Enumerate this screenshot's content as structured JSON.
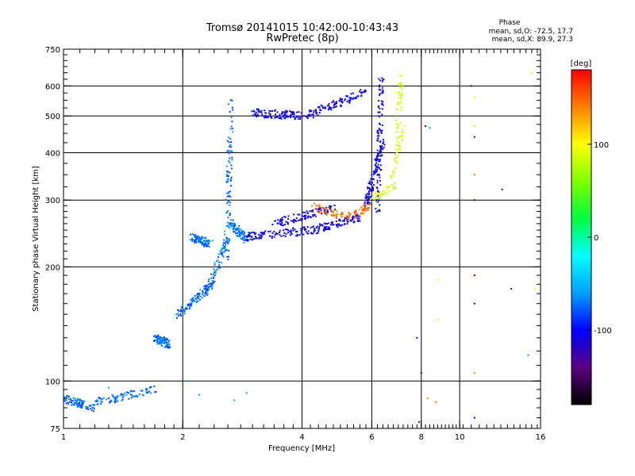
{
  "chart_data": {
    "type": "scatter",
    "title": "Tromsø 20141015 10:42:00-10:43:43",
    "subtitle": "RwPretec (8p)",
    "xlabel": "Frequency [MHz]",
    "ylabel": "Stationary phase Virtual Height [km]",
    "x_scale": "log",
    "y_scale": "log",
    "xlim": [
      1,
      16
    ],
    "ylim": [
      75,
      750
    ],
    "x_ticks": [
      1,
      2,
      4,
      6,
      8,
      10,
      16
    ],
    "x_tick_labels": [
      "1",
      "2",
      "4",
      "6",
      "8",
      "10",
      "16"
    ],
    "y_ticks": [
      75,
      100,
      200,
      300,
      400,
      500,
      600,
      750
    ],
    "y_tick_labels": [
      "75",
      "100",
      "200",
      "300",
      "400",
      "500",
      "600",
      "750"
    ],
    "grid": true,
    "stats": {
      "title": "Phase",
      "line_o": "mean, sd,O: -72.5, 17.7",
      "line_x": "mean, sd,X:  89.9, 27.3"
    },
    "colorbar": {
      "label": "[deg]",
      "min": -180,
      "max": 180,
      "ticks": [
        100,
        0,
        -100
      ],
      "tick_labels": [
        "100",
        "0",
        "-100"
      ],
      "colors": [
        "#000000",
        "#5a0080",
        "#0000ff",
        "#00a0ff",
        "#00ffff",
        "#00ff40",
        "#80ff00",
        "#ffff00",
        "#ff8000",
        "#ff0000"
      ]
    },
    "series": [
      {
        "segments": [
          [
            1.0,
            90,
            1.2,
            85
          ],
          [
            1.2,
            88,
            1.7,
            95
          ],
          [
            1.7,
            130,
            1.85,
            125
          ],
          [
            1.95,
            150,
            2.3,
            175
          ],
          [
            2.3,
            170,
            2.6,
            240
          ],
          [
            2.58,
            210,
            2.65,
            550
          ],
          [
            2.65,
            260,
            2.9,
            235
          ],
          [
            2.1,
            240,
            2.35,
            230
          ]
        ],
        "phase": -72,
        "count": 700
      },
      {
        "segments": [
          [
            2.9,
            240,
            4.3,
            250
          ],
          [
            4.3,
            250,
            5.6,
            270
          ],
          [
            3.0,
            510,
            4.1,
            500
          ],
          [
            4.1,
            500,
            5.8,
            580
          ],
          [
            6.2,
            280,
            6.35,
            630
          ],
          [
            5.8,
            290,
            6.4,
            430
          ],
          [
            3.4,
            260,
            4.8,
            285
          ]
        ],
        "phase": -105,
        "count": 750
      },
      {
        "segments": [
          [
            4.2,
            290,
            5.2,
            270
          ],
          [
            5.2,
            270,
            6.0,
            290
          ]
        ],
        "phase": 145,
        "count": 90
      },
      {
        "segments": [
          [
            6.0,
            300,
            6.9,
            330
          ],
          [
            6.7,
            340,
            7.2,
            470
          ],
          [
            7.0,
            460,
            7.1,
            640
          ]
        ],
        "phase": 85,
        "count": 120
      },
      {
        "points": [
          [
            8.2,
            470
          ],
          [
            10.7,
            600
          ],
          [
            10.9,
            440
          ],
          [
            10.9,
            300
          ],
          [
            12.8,
            320
          ],
          [
            13.5,
            175
          ],
          [
            10.9,
            190
          ],
          [
            10.9,
            160
          ],
          [
            7.8,
            130
          ],
          [
            8.0,
            105
          ],
          [
            10.9,
            80
          ],
          [
            7.9,
            78
          ]
        ],
        "phase": -110
      },
      {
        "points": [
          [
            8.8,
            185
          ],
          [
            8.8,
            145
          ],
          [
            15.2,
            650
          ],
          [
            15.5,
            175
          ],
          [
            10.9,
            470
          ],
          [
            10.9,
            560
          ]
        ],
        "phase": 90
      },
      {
        "points": [
          [
            10.9,
            105
          ],
          [
            8.3,
            90
          ],
          [
            8.7,
            88
          ],
          [
            10.9,
            350
          ]
        ],
        "phase": 140
      },
      {
        "points": [
          [
            1.3,
            96
          ],
          [
            2.05,
            100
          ],
          [
            2.2,
            92
          ],
          [
            2.7,
            89
          ],
          [
            2.9,
            93
          ],
          [
            3.0,
            240
          ],
          [
            8.4,
            465
          ],
          [
            14.9,
            117
          ]
        ],
        "phase": -60
      }
    ]
  }
}
